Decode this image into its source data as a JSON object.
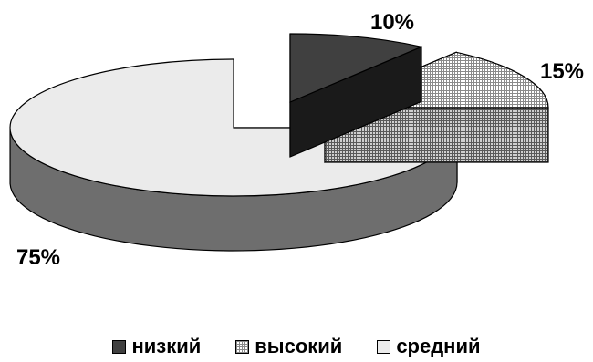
{
  "chart_data": {
    "type": "pie",
    "style": "3d-exploded",
    "categories": [
      "низкий",
      "высокий",
      "средний"
    ],
    "values": [
      10,
      15,
      75
    ],
    "data_labels": [
      "10%",
      "15%",
      "75%"
    ],
    "legend_position": "bottom",
    "colors": {
      "низкий": "#404040",
      "высокий": "#d8d8d8-hatched",
      "средний": "#ebebeb"
    },
    "title": ""
  }
}
